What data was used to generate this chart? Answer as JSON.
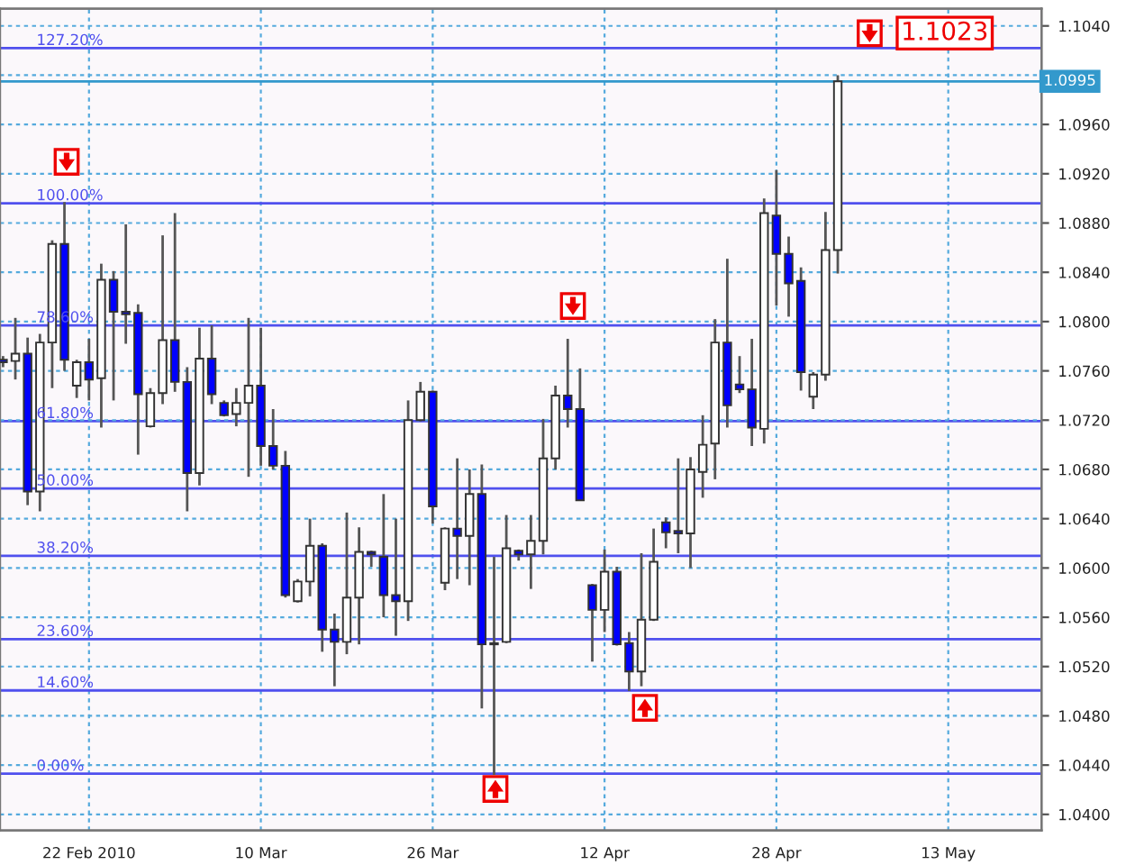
{
  "chart_data": {
    "type": "candlestick",
    "categories": [
      null,
      null,
      null,
      null,
      null,
      null,
      null,
      "22 Feb 2010",
      null,
      null,
      null,
      null,
      null,
      null,
      null,
      null,
      null,
      null,
      null,
      null,
      null,
      "10 Mar",
      null,
      null,
      null,
      null,
      null,
      null,
      null,
      null,
      null,
      null,
      null,
      null,
      null,
      "26 Mar",
      null,
      null,
      null,
      null,
      null,
      null,
      null,
      null,
      null,
      null,
      null,
      null,
      null,
      "12 Apr",
      null,
      null,
      null,
      null,
      null,
      null,
      null,
      null,
      null,
      null,
      null,
      null,
      null,
      "28 Apr",
      null,
      null,
      null,
      null,
      null,
      null,
      null,
      null,
      null,
      null,
      null,
      null,
      null,
      "13 May",
      null,
      null,
      null,
      null,
      null,
      null,
      null
    ],
    "ohlc": [
      [
        1.0769,
        1.0772,
        1.0763,
        1.0767
      ],
      [
        1.0768,
        1.0803,
        1.0753,
        1.0774
      ],
      [
        1.0774,
        1.0787,
        1.0651,
        1.0662
      ],
      [
        1.0662,
        1.079,
        1.0646,
        1.0783
      ],
      [
        1.0783,
        1.0866,
        1.0746,
        1.0863
      ],
      [
        1.0863,
        1.0897,
        1.076,
        1.0769
      ],
      [
        1.0748,
        1.0769,
        1.0738,
        1.0767
      ],
      [
        1.0767,
        1.0786,
        1.0736,
        1.0753
      ],
      [
        1.0754,
        1.0847,
        1.0714,
        1.0834
      ],
      [
        1.0834,
        1.0841,
        1.0736,
        1.0808
      ],
      [
        1.0808,
        1.0879,
        1.0782,
        1.0806
      ],
      [
        1.0807,
        1.0814,
        1.0692,
        1.0741
      ],
      [
        1.0715,
        1.0746,
        1.0714,
        1.0742
      ],
      [
        1.0742,
        1.087,
        1.0733,
        1.0785
      ],
      [
        1.0785,
        1.0888,
        1.0743,
        1.0751
      ],
      [
        1.0751,
        1.0763,
        1.0646,
        1.0677
      ],
      [
        1.0677,
        1.0795,
        1.0667,
        1.077
      ],
      [
        1.077,
        1.0797,
        1.0733,
        1.0741
      ],
      [
        1.0734,
        1.0736,
        1.0723,
        1.0724
      ],
      [
        1.0725,
        1.0746,
        1.0715,
        1.0734
      ],
      [
        1.0734,
        1.0803,
        1.0674,
        1.0748
      ],
      [
        1.0748,
        1.0795,
        1.0683,
        1.0699
      ],
      [
        1.0699,
        1.0729,
        1.068,
        1.0683
      ],
      [
        1.0683,
        1.0695,
        1.0576,
        1.0578
      ],
      [
        1.0573,
        1.0591,
        1.0572,
        1.0589
      ],
      [
        1.0589,
        1.064,
        1.0577,
        1.0618
      ],
      [
        1.0618,
        1.062,
        1.0532,
        1.055
      ],
      [
        1.055,
        1.0563,
        1.0504,
        1.054
      ],
      [
        1.054,
        1.0645,
        1.053,
        1.0576
      ],
      [
        1.0576,
        1.0633,
        1.0538,
        1.0613
      ],
      [
        1.0613,
        1.0614,
        1.0601,
        1.0611
      ],
      [
        1.0609,
        1.066,
        1.056,
        1.0578
      ],
      [
        1.0578,
        1.064,
        1.0545,
        1.0573
      ],
      [
        1.0573,
        1.0736,
        1.0557,
        1.072
      ],
      [
        1.072,
        1.0751,
        1.0719,
        1.0743
      ],
      [
        1.0743,
        1.0744,
        1.0636,
        1.065
      ],
      [
        1.0588,
        1.0633,
        1.0582,
        1.0632
      ],
      [
        1.0632,
        1.0689,
        1.0591,
        1.0626
      ],
      [
        1.0626,
        1.068,
        1.0586,
        1.066
      ],
      [
        1.066,
        1.0684,
        1.0486,
        1.0538
      ],
      [
        1.0539,
        1.0609,
        1.0432,
        1.0538
      ],
      [
        1.054,
        1.0643,
        1.0539,
        1.0616
      ],
      [
        1.0614,
        1.0615,
        1.0606,
        1.0611
      ],
      [
        1.0611,
        1.0643,
        1.0583,
        1.0622
      ],
      [
        1.0622,
        1.0721,
        1.0611,
        1.0689
      ],
      [
        1.0689,
        1.0748,
        1.068,
        1.074
      ],
      [
        1.074,
        1.0786,
        1.0714,
        1.0729
      ],
      [
        1.0729,
        1.0762,
        1.0655,
        1.0655
      ],
      [
        1.0586,
        1.0587,
        1.0524,
        1.0566
      ],
      [
        1.0566,
        1.0615,
        1.0548,
        1.0597
      ],
      [
        1.0597,
        1.0601,
        1.0537,
        1.0538
      ],
      [
        1.0539,
        1.0548,
        1.05,
        1.0516
      ],
      [
        1.0516,
        1.0612,
        1.0504,
        1.0558
      ],
      [
        1.0558,
        1.0632,
        1.0557,
        1.0605
      ],
      [
        1.0637,
        1.0641,
        1.0616,
        1.0629
      ],
      [
        1.063,
        1.0689,
        1.0612,
        1.0628
      ],
      [
        1.0628,
        1.069,
        1.06,
        1.068
      ],
      [
        1.0678,
        1.0724,
        1.0657,
        1.07
      ],
      [
        1.0701,
        1.0802,
        1.0672,
        1.0783
      ],
      [
        1.0783,
        1.0851,
        1.0714,
        1.0732
      ],
      [
        1.0749,
        1.0772,
        1.0742,
        1.0745
      ],
      [
        1.0745,
        1.0786,
        1.0699,
        1.0714
      ],
      [
        1.0713,
        1.09,
        1.0701,
        1.0888
      ],
      [
        1.0886,
        1.0923,
        1.0813,
        1.0855
      ],
      [
        1.0855,
        1.0869,
        1.0804,
        1.0831
      ],
      [
        1.0833,
        1.0844,
        1.0744,
        1.0759
      ],
      [
        1.0739,
        1.0759,
        1.0729,
        1.0757
      ],
      [
        1.0757,
        1.0889,
        1.0752,
        1.0858
      ],
      [
        1.0858,
        1.1,
        1.0839,
        1.0995
      ],
      null,
      null,
      null,
      null,
      null,
      null,
      null,
      null,
      null,
      null,
      null,
      null,
      null,
      null,
      null,
      null
    ],
    "colors": [
      "#0000ff",
      "#ffffff",
      "#0000ff",
      "#ffffff",
      "#ffffff",
      "#0000ff",
      "#ffffff",
      "#0000ff",
      "#ffffff",
      "#0000ff",
      "#0000ff",
      "#0000ff",
      "#ffffff",
      "#ffffff",
      "#0000ff",
      "#0000ff",
      "#ffffff",
      "#0000ff",
      "#0000ff",
      "#ffffff",
      "#ffffff",
      "#0000ff",
      "#0000ff",
      "#0000ff",
      "#ffffff",
      "#ffffff",
      "#0000ff",
      "#0000ff",
      "#ffffff",
      "#ffffff",
      "#0000ff",
      "#0000ff",
      "#0000ff",
      "#ffffff",
      "#ffffff",
      "#0000ff",
      "#ffffff",
      "#0000ff",
      "#ffffff",
      "#0000ff",
      "#0000ff",
      "#ffffff",
      "#0000ff",
      "#ffffff",
      "#ffffff",
      "#ffffff",
      "#0000ff",
      "#0000ff",
      "#0000ff",
      "#ffffff",
      "#0000ff",
      "#0000ff",
      "#ffffff",
      "#ffffff",
      "#0000ff",
      "#0000ff",
      "#ffffff",
      "#ffffff",
      "#ffffff",
      "#0000ff",
      "#0000ff",
      "#0000ff",
      "#ffffff",
      "#0000ff",
      "#0000ff",
      "#0000ff",
      "#ffffff",
      "#ffffff",
      "#ffffff",
      null,
      null,
      null,
      null,
      null,
      null,
      null,
      null,
      null,
      null,
      null,
      null,
      null,
      null,
      null,
      null
    ],
    "y2lim": [
      -9.94,
      134.13
    ],
    "ylim": [
      1.0387,
      1.1054
    ],
    "yticks": [
      {
        "value": 1.04,
        "label": "1.0400"
      },
      {
        "value": 1.044,
        "label": "1.0440"
      },
      {
        "value": 1.048,
        "label": "1.0480"
      },
      {
        "value": 1.052,
        "label": "1.0520"
      },
      {
        "value": 1.056,
        "label": "1.0560"
      },
      {
        "value": 1.06,
        "label": "1.0600"
      },
      {
        "value": 1.064,
        "label": "1.0640"
      },
      {
        "value": 1.068,
        "label": "1.0680"
      },
      {
        "value": 1.072,
        "label": "1.0720"
      },
      {
        "value": 1.076,
        "label": "1.0760"
      },
      {
        "value": 1.08,
        "label": "1.0800"
      },
      {
        "value": 1.084,
        "label": "1.0840"
      },
      {
        "value": 1.088,
        "label": "1.0880"
      },
      {
        "value": 1.092,
        "label": "1.0920"
      },
      {
        "value": 1.096,
        "label": "1.0960"
      },
      {
        "value": 1.1,
        "label": null
      },
      {
        "value": 1.104,
        "label": "1.1040"
      }
    ],
    "grid": true,
    "ref_lines": [
      {
        "axis": "y2",
        "value": 0,
        "label": "0.00%",
        "color": "#5050ee"
      },
      {
        "axis": "y2",
        "value": 14.6,
        "label": "14.60%",
        "color": "#5050ee"
      },
      {
        "axis": "y2",
        "value": 23.6,
        "label": "23.60%",
        "color": "#5050ee"
      },
      {
        "axis": "y2",
        "value": 38.2,
        "label": "38.20%",
        "color": "#5050ee"
      },
      {
        "axis": "y2",
        "value": 50,
        "label": "50.00%",
        "color": "#5050ee"
      },
      {
        "axis": "y2",
        "value": 61.8,
        "label": "61.80%",
        "color": "#5050ee"
      },
      {
        "axis": "y2",
        "value": 78.6,
        "label": "78.60%",
        "color": "#5050ee"
      },
      {
        "axis": "y2",
        "value": 100,
        "label": "100.00%",
        "color": "#5050ee"
      },
      {
        "axis": "y2",
        "value": 127.2,
        "label": "127.20%",
        "color": "#5050ee"
      },
      {
        "axis": "y",
        "value": 1.0995,
        "label": "1.0995",
        "color": "#3399cc"
      }
    ],
    "annotations": [
      "1.1023"
    ]
  }
}
